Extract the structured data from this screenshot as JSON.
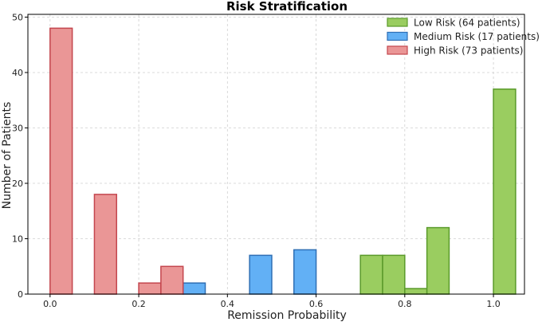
{
  "chart_data": {
    "type": "bar",
    "title": "Risk Stratification",
    "xlabel": "Remission Probability",
    "ylabel": "Number of Patients",
    "xlim": [
      -0.05,
      1.07
    ],
    "ylim": [
      0,
      50.5
    ],
    "xticks": [
      0.0,
      0.2,
      0.4,
      0.6,
      0.8,
      1.0
    ],
    "xtick_labels": [
      "0.0",
      "0.2",
      "0.4",
      "0.6",
      "0.8",
      "1.0"
    ],
    "yticks": [
      0,
      10,
      20,
      30,
      40,
      50
    ],
    "ytick_labels": [
      "0",
      "10",
      "20",
      "30",
      "40",
      "50"
    ],
    "bin_width": 0.05,
    "grid": true,
    "legend_position": "top-right",
    "series": [
      {
        "name": "Low Risk (64 patients)",
        "fill": "#9acd60",
        "edge": "#5a9a2a",
        "bins": [
          {
            "x0": 0.7,
            "count": 7
          },
          {
            "x0": 0.75,
            "count": 7
          },
          {
            "x0": 0.8,
            "count": 1
          },
          {
            "x0": 0.85,
            "count": 12
          },
          {
            "x0": 1.0,
            "count": 37
          }
        ]
      },
      {
        "name": "Medium Risk (17 patients)",
        "fill": "#62b0f5",
        "edge": "#2f6fb5",
        "bins": [
          {
            "x0": 0.3,
            "count": 2
          },
          {
            "x0": 0.45,
            "count": 7
          },
          {
            "x0": 0.55,
            "count": 8
          }
        ]
      },
      {
        "name": "High Risk (73 patients)",
        "fill": "#ea9696",
        "edge": "#c4464e",
        "bins": [
          {
            "x0": 0.0,
            "count": 48
          },
          {
            "x0": 0.1,
            "count": 18
          },
          {
            "x0": 0.2,
            "count": 2
          },
          {
            "x0": 0.25,
            "count": 5
          }
        ]
      }
    ]
  }
}
